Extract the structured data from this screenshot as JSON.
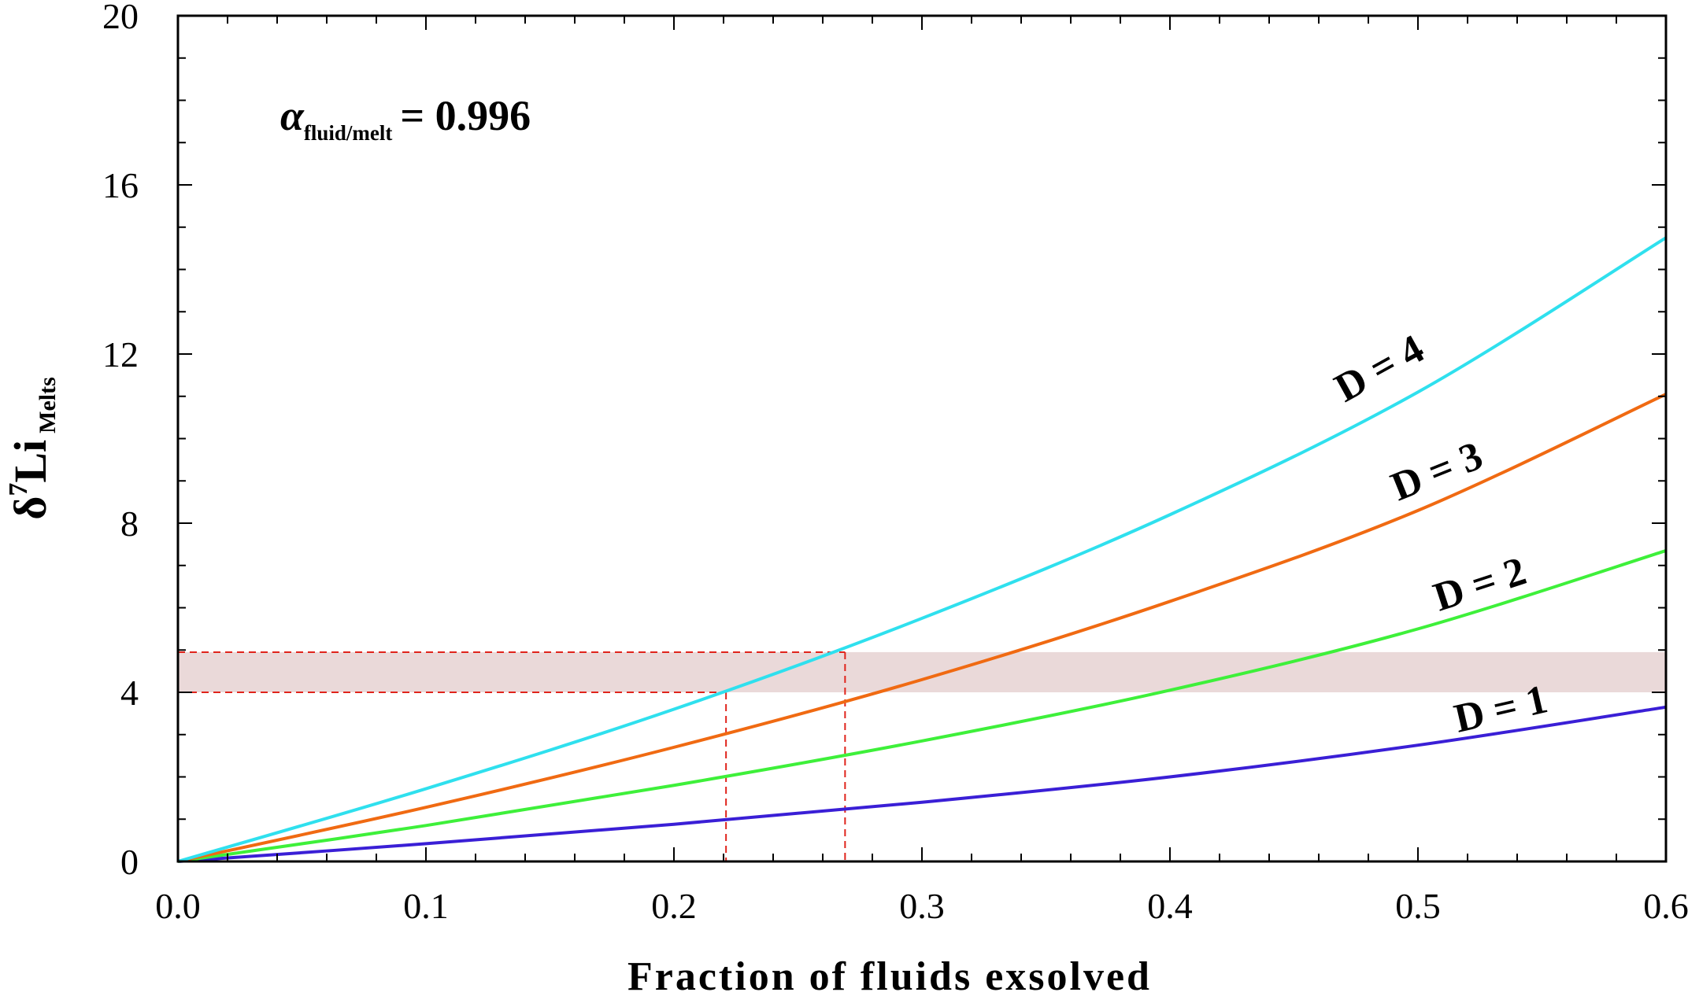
{
  "chart_data": {
    "type": "line",
    "title": "",
    "xlabel": "Fraction of fluids exsolved",
    "ylabel": {
      "main": "δ",
      "superscript": "7",
      "element": "Li",
      "subscript": "Melts"
    },
    "xlim": [
      0,
      0.6
    ],
    "ylim": [
      0,
      20
    ],
    "x_ticks": [
      "0.0",
      "0.1",
      "0.2",
      "0.3",
      "0.4",
      "0.5",
      "0.6"
    ],
    "y_ticks": [
      "0",
      "4",
      "8",
      "12",
      "16",
      "20"
    ],
    "annotation": {
      "symbol": "α",
      "subscript": "fluid/melt",
      "value_text": "= 0.996"
    },
    "series": [
      {
        "name": "D = 1",
        "color": "#3a1fd6",
        "x": [
          0,
          0.1,
          0.2,
          0.3,
          0.4,
          0.5,
          0.6
        ],
        "y": [
          0,
          0.42,
          0.88,
          1.4,
          2.0,
          2.75,
          3.65
        ]
      },
      {
        "name": "D = 2",
        "color": "#3ef03a",
        "x": [
          0,
          0.1,
          0.2,
          0.3,
          0.4,
          0.5,
          0.6
        ],
        "y": [
          0,
          0.85,
          1.8,
          2.85,
          4.05,
          5.5,
          7.35
        ]
      },
      {
        "name": "D = 3",
        "color": "#f06a12",
        "x": [
          0,
          0.1,
          0.2,
          0.3,
          0.4,
          0.5,
          0.6
        ],
        "y": [
          0,
          1.28,
          2.7,
          4.3,
          6.15,
          8.3,
          11.05
        ]
      },
      {
        "name": "D = 4",
        "color": "#2fe0ee",
        "x": [
          0,
          0.1,
          0.2,
          0.3,
          0.4,
          0.5,
          0.6
        ],
        "y": [
          0,
          1.72,
          3.6,
          5.75,
          8.2,
          11.1,
          14.75
        ]
      }
    ],
    "shaded_band": {
      "y_range": [
        4.0,
        4.95
      ],
      "color": "#ead9d9"
    },
    "reference_lines": {
      "color": "#e0241c",
      "horizontal_y": [
        4.0,
        4.95
      ],
      "vertical_x": [
        0.221,
        0.269
      ]
    }
  }
}
